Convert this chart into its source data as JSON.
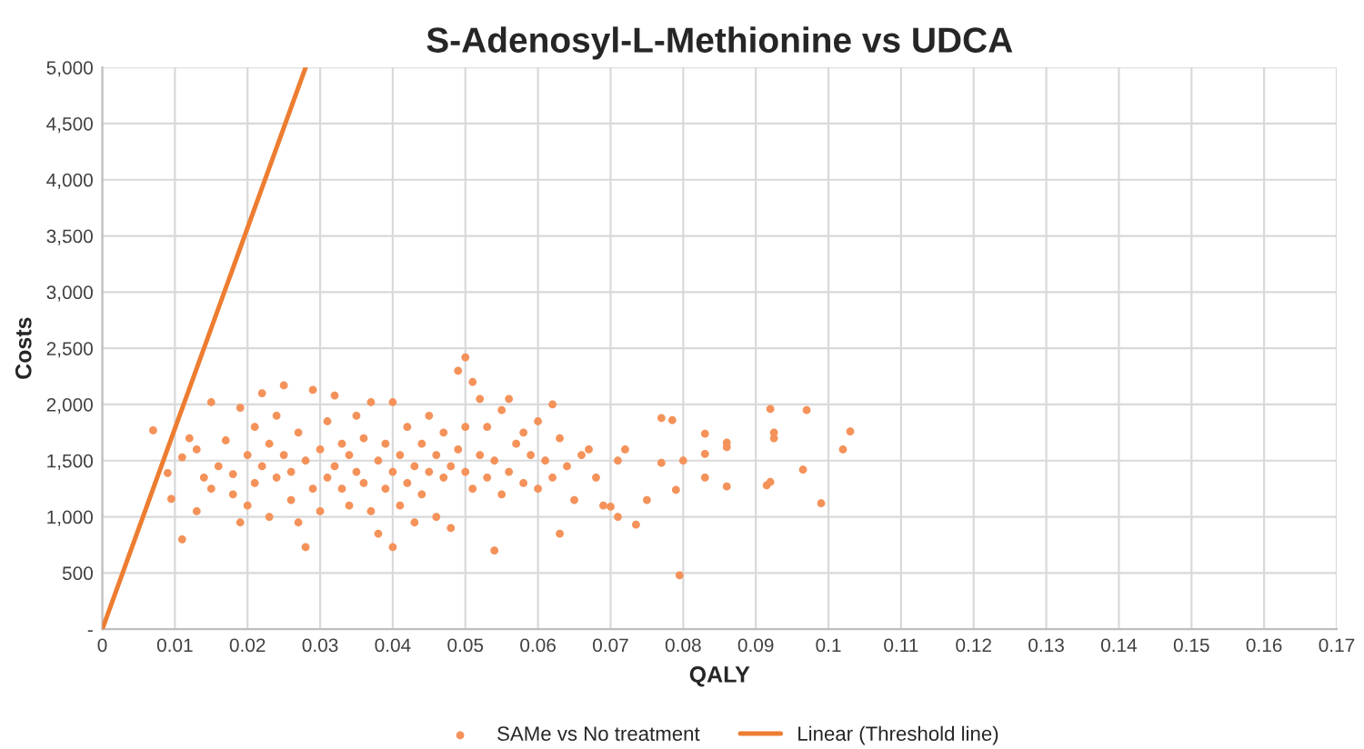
{
  "chart_data": {
    "type": "scatter",
    "title": "S-Adenosyl-L-Methionine vs UDCA",
    "xlabel": "QALY",
    "ylabel": "Costs",
    "xlim": [
      0,
      0.17
    ],
    "xticks": [
      0,
      0.01,
      0.02,
      0.03,
      0.04,
      0.05,
      0.06,
      0.07,
      0.08,
      0.09,
      0.1,
      0.11,
      0.12,
      0.13,
      0.14,
      0.15,
      0.16,
      0.17
    ],
    "ylim": [
      0,
      5000
    ],
    "yticks": [
      {
        "value": 0,
        "label": "-"
      },
      {
        "value": 500,
        "label": "500"
      },
      {
        "value": 1000,
        "label": "1,000"
      },
      {
        "value": 1500,
        "label": "1,500"
      },
      {
        "value": 2000,
        "label": "2,000"
      },
      {
        "value": 2500,
        "label": "2,500"
      },
      {
        "value": 3000,
        "label": "3,000"
      },
      {
        "value": 3500,
        "label": "3,500"
      },
      {
        "value": 4000,
        "label": "4,000"
      },
      {
        "value": 4500,
        "label": "4,500"
      },
      {
        "value": 5000,
        "label": "5,000"
      }
    ],
    "grid": true,
    "legend": "bottom",
    "marker": "circle",
    "series": [
      {
        "name": "SAMe vs No treatment",
        "color": "#f4925a",
        "x": [
          0.007,
          0.009,
          0.0095,
          0.011,
          0.011,
          0.012,
          0.013,
          0.013,
          0.014,
          0.015,
          0.015,
          0.016,
          0.017,
          0.018,
          0.018,
          0.019,
          0.019,
          0.02,
          0.02,
          0.021,
          0.021,
          0.022,
          0.022,
          0.023,
          0.023,
          0.024,
          0.024,
          0.025,
          0.025,
          0.026,
          0.026,
          0.027,
          0.027,
          0.028,
          0.028,
          0.029,
          0.029,
          0.03,
          0.03,
          0.031,
          0.031,
          0.032,
          0.032,
          0.033,
          0.033,
          0.034,
          0.034,
          0.035,
          0.035,
          0.036,
          0.036,
          0.037,
          0.037,
          0.038,
          0.038,
          0.039,
          0.039,
          0.04,
          0.04,
          0.04,
          0.041,
          0.041,
          0.042,
          0.042,
          0.043,
          0.043,
          0.044,
          0.044,
          0.045,
          0.045,
          0.046,
          0.046,
          0.047,
          0.047,
          0.048,
          0.048,
          0.049,
          0.049,
          0.05,
          0.05,
          0.05,
          0.051,
          0.051,
          0.052,
          0.052,
          0.053,
          0.053,
          0.054,
          0.054,
          0.055,
          0.055,
          0.056,
          0.056,
          0.057,
          0.058,
          0.058,
          0.059,
          0.06,
          0.06,
          0.061,
          0.062,
          0.062,
          0.063,
          0.063,
          0.064,
          0.065,
          0.066,
          0.067,
          0.068,
          0.069,
          0.07,
          0.071,
          0.071,
          0.072,
          0.0735,
          0.075,
          0.077,
          0.077,
          0.0785,
          0.079,
          0.0795,
          0.08,
          0.083,
          0.083,
          0.083,
          0.086,
          0.086,
          0.086,
          0.0915,
          0.092,
          0.092,
          0.0925,
          0.0925,
          0.0965,
          0.097,
          0.099,
          0.102,
          0.103
        ],
        "values": [
          1770,
          1390,
          1160,
          800,
          1530,
          1700,
          1050,
          1600,
          1350,
          2020,
          1250,
          1450,
          1680,
          1380,
          1200,
          1970,
          950,
          1550,
          1100,
          1800,
          1300,
          2100,
          1450,
          1650,
          1000,
          1900,
          1350,
          2170,
          1550,
          1400,
          1150,
          1750,
          950,
          730,
          1500,
          2130,
          1250,
          1600,
          1050,
          1850,
          1350,
          1450,
          2080,
          1250,
          1650,
          1100,
          1550,
          1900,
          1400,
          1300,
          1700,
          1050,
          2020,
          1500,
          850,
          1650,
          1250,
          2020,
          1400,
          730,
          1550,
          1100,
          1800,
          1300,
          1450,
          950,
          1650,
          1200,
          1900,
          1400,
          1550,
          1000,
          1750,
          1350,
          1450,
          900,
          2300,
          1600,
          2420,
          1400,
          1800,
          2200,
          1250,
          2050,
          1550,
          1350,
          1800,
          700,
          1500,
          1950,
          1200,
          2050,
          1400,
          1650,
          1300,
          1750,
          1550,
          1850,
          1250,
          1500,
          2000,
          1350,
          850,
          1700,
          1450,
          1150,
          1550,
          1600,
          1350,
          1100,
          1090,
          1000,
          1500,
          1600,
          930,
          1150,
          1880,
          1480,
          1860,
          1240,
          480,
          1500,
          1350,
          1560,
          1740,
          1660,
          1620,
          1270,
          1280,
          1960,
          1310,
          1750,
          1700,
          1420,
          1950,
          1120,
          1600,
          1760
        ]
      },
      {
        "name": "Linear (Threshold line)",
        "type": "line",
        "color": "#ed7d31",
        "x": [
          0,
          0.028
        ],
        "values": [
          0,
          5000
        ],
        "line_style": "solid",
        "marker": "none"
      }
    ]
  }
}
